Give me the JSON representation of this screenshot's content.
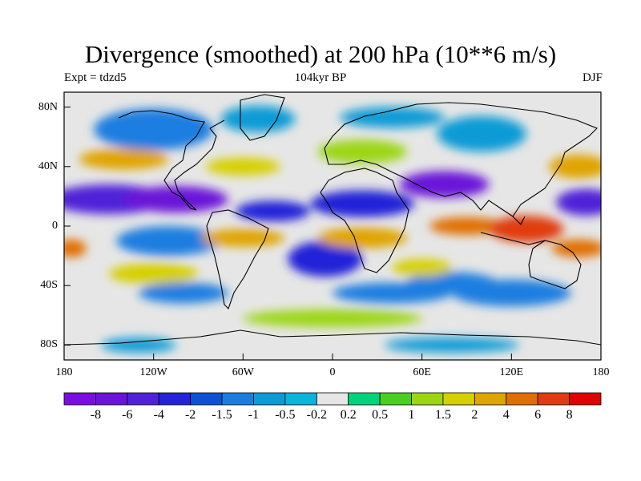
{
  "header": {
    "title": "Divergence (smoothed) at 200 hPa (10**6 m/s)",
    "left": "Expt = tdzd5",
    "center": "104kyr BP",
    "right": "DJF"
  },
  "map": {
    "projection": "cylindrical-equidistant",
    "lon_range": [
      -180,
      180
    ],
    "lat_range": [
      -90,
      90
    ],
    "lat_ticks": [
      {
        "value": 80,
        "label": "80N"
      },
      {
        "value": 40,
        "label": "40N"
      },
      {
        "value": 0,
        "label": "0"
      },
      {
        "value": -40,
        "label": "40S"
      },
      {
        "value": -80,
        "label": "80S"
      }
    ],
    "lon_ticks": [
      {
        "value": -180,
        "label": "180"
      },
      {
        "value": -120,
        "label": "120W"
      },
      {
        "value": -60,
        "label": "60W"
      },
      {
        "value": 0,
        "label": "0"
      },
      {
        "value": 60,
        "label": "60E"
      },
      {
        "value": 120,
        "label": "120E"
      },
      {
        "value": 180,
        "label": "180"
      }
    ],
    "background_color": "#e6e6e6",
    "coastline_color": "#000000"
  },
  "colorbar": {
    "colors": [
      "#7a0ee0",
      "#6a14d8",
      "#4f22d8",
      "#2323d8",
      "#0a53d6",
      "#1a7ee0",
      "#0b9bd6",
      "#0ab4dc",
      "#e6e6e6",
      "#00d47a",
      "#48d020",
      "#9cd612",
      "#d6d000",
      "#e0a400",
      "#e06e00",
      "#e03c10",
      "#e00000"
    ],
    "labels": [
      "-8",
      "-6",
      "-4",
      "-2",
      "-1.5",
      "-1",
      "-0.5",
      "-0.2",
      "0.2",
      "0.5",
      "1",
      "1.5",
      "2",
      "4",
      "6",
      "8"
    ]
  },
  "fields": [
    {
      "lon": -150,
      "lat": 18,
      "value": -5.5,
      "rx": 40,
      "ry": 10
    },
    {
      "lon": -105,
      "lat": 18,
      "value": -6.5,
      "rx": 35,
      "ry": 9
    },
    {
      "lon": -40,
      "lat": 10,
      "value": -2.2,
      "rx": 25,
      "ry": 7
    },
    {
      "lon": 20,
      "lat": 15,
      "value": -3.5,
      "rx": 35,
      "ry": 9
    },
    {
      "lon": 75,
      "lat": 28,
      "value": -6.5,
      "rx": 30,
      "ry": 9
    },
    {
      "lon": 170,
      "lat": 16,
      "value": -5,
      "rx": 20,
      "ry": 9
    },
    {
      "lon": -120,
      "lat": 65,
      "value": -1.2,
      "rx": 40,
      "ry": 14
    },
    {
      "lon": -50,
      "lat": 72,
      "value": -1,
      "rx": 25,
      "ry": 9
    },
    {
      "lon": 40,
      "lat": 73,
      "value": -0.8,
      "rx": 35,
      "ry": 7
    },
    {
      "lon": 100,
      "lat": 62,
      "value": -1,
      "rx": 30,
      "ry": 12
    },
    {
      "lon": -5,
      "lat": -22,
      "value": -3,
      "rx": 25,
      "ry": 12
    },
    {
      "lon": -110,
      "lat": -10,
      "value": -1.3,
      "rx": 35,
      "ry": 10
    },
    {
      "lon": 40,
      "lat": -45,
      "value": -1.5,
      "rx": 40,
      "ry": 7
    },
    {
      "lon": 80,
      "lat": -38,
      "value": -1.2,
      "rx": 30,
      "ry": 7
    },
    {
      "lon": 120,
      "lat": -45,
      "value": -1.3,
      "rx": 40,
      "ry": 9
    },
    {
      "lon": -100,
      "lat": -45,
      "value": -1.2,
      "rx": 30,
      "ry": 7
    },
    {
      "lon": -130,
      "lat": -80,
      "value": -0.8,
      "rx": 25,
      "ry": 5
    },
    {
      "lon": 80,
      "lat": -80,
      "value": -0.8,
      "rx": 45,
      "ry": 5
    },
    {
      "lon": -140,
      "lat": 45,
      "value": 2.2,
      "rx": 30,
      "ry": 7
    },
    {
      "lon": -60,
      "lat": 40,
      "value": 1.8,
      "rx": 25,
      "ry": 6
    },
    {
      "lon": 165,
      "lat": 40,
      "value": 2.2,
      "rx": 20,
      "ry": 8
    },
    {
      "lon": 20,
      "lat": 50,
      "value": 1,
      "rx": 30,
      "ry": 8
    },
    {
      "lon": -60,
      "lat": -8,
      "value": 2.5,
      "rx": 28,
      "ry": 6
    },
    {
      "lon": 20,
      "lat": -8,
      "value": 3,
      "rx": 30,
      "ry": 7
    },
    {
      "lon": 90,
      "lat": 0,
      "value": 5.5,
      "rx": 25,
      "ry": 6
    },
    {
      "lon": 130,
      "lat": -2,
      "value": 6,
      "rx": 25,
      "ry": 9
    },
    {
      "lon": 165,
      "lat": -15,
      "value": 5,
      "rx": 18,
      "ry": 6
    },
    {
      "lon": -175,
      "lat": -15,
      "value": 5,
      "rx": 10,
      "ry": 6
    },
    {
      "lon": -120,
      "lat": -32,
      "value": 1.8,
      "rx": 30,
      "ry": 7
    },
    {
      "lon": 60,
      "lat": -28,
      "value": 1.5,
      "rx": 20,
      "ry": 6
    },
    {
      "lon": 0,
      "lat": -62,
      "value": 1,
      "rx": 60,
      "ry": 6
    }
  ]
}
